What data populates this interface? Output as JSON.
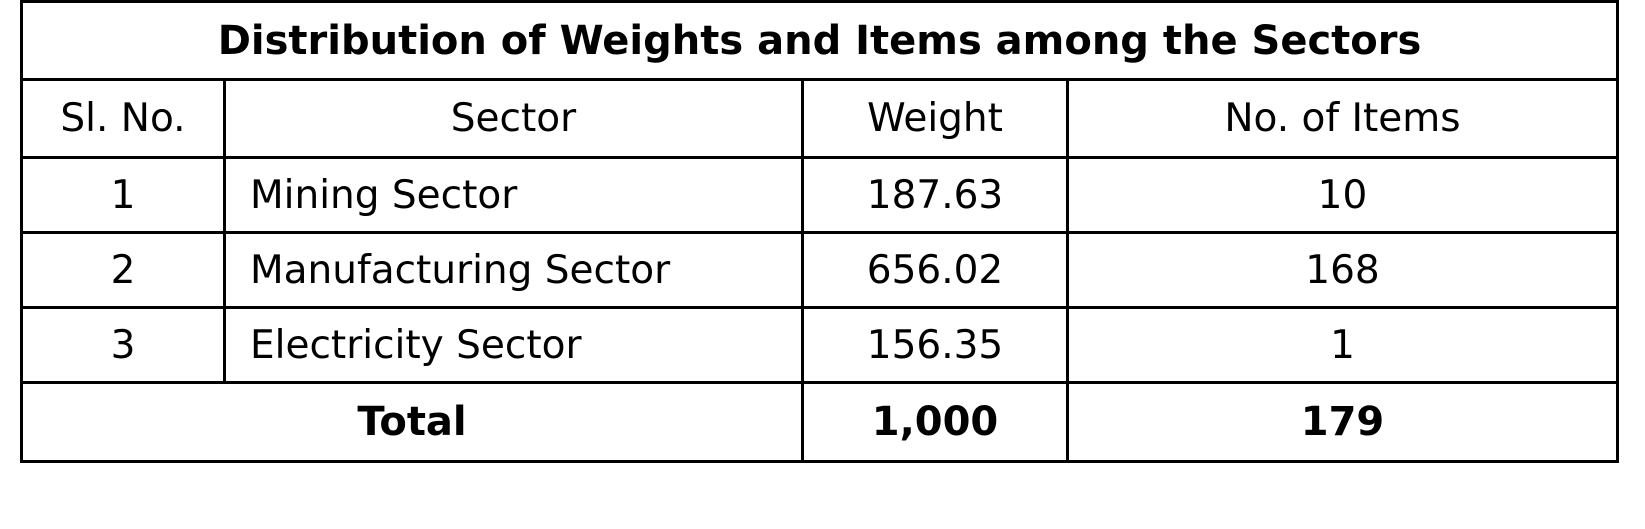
{
  "table": {
    "title": "Distribution of Weights and Items among the Sectors",
    "headers": {
      "sl_no": "Sl. No.",
      "sector": "Sector",
      "weight": "Weight",
      "items": "No. of Items"
    },
    "rows": [
      {
        "sl_no": "1",
        "sector": "Mining Sector",
        "weight": "187.63",
        "items": "10"
      },
      {
        "sl_no": "2",
        "sector": "Manufacturing Sector",
        "weight": "656.02",
        "items": "168"
      },
      {
        "sl_no": "3",
        "sector": "Electricity Sector",
        "weight": "156.35",
        "items": "1"
      }
    ],
    "total": {
      "label": "Total",
      "weight": "1,000",
      "items": "179"
    }
  }
}
